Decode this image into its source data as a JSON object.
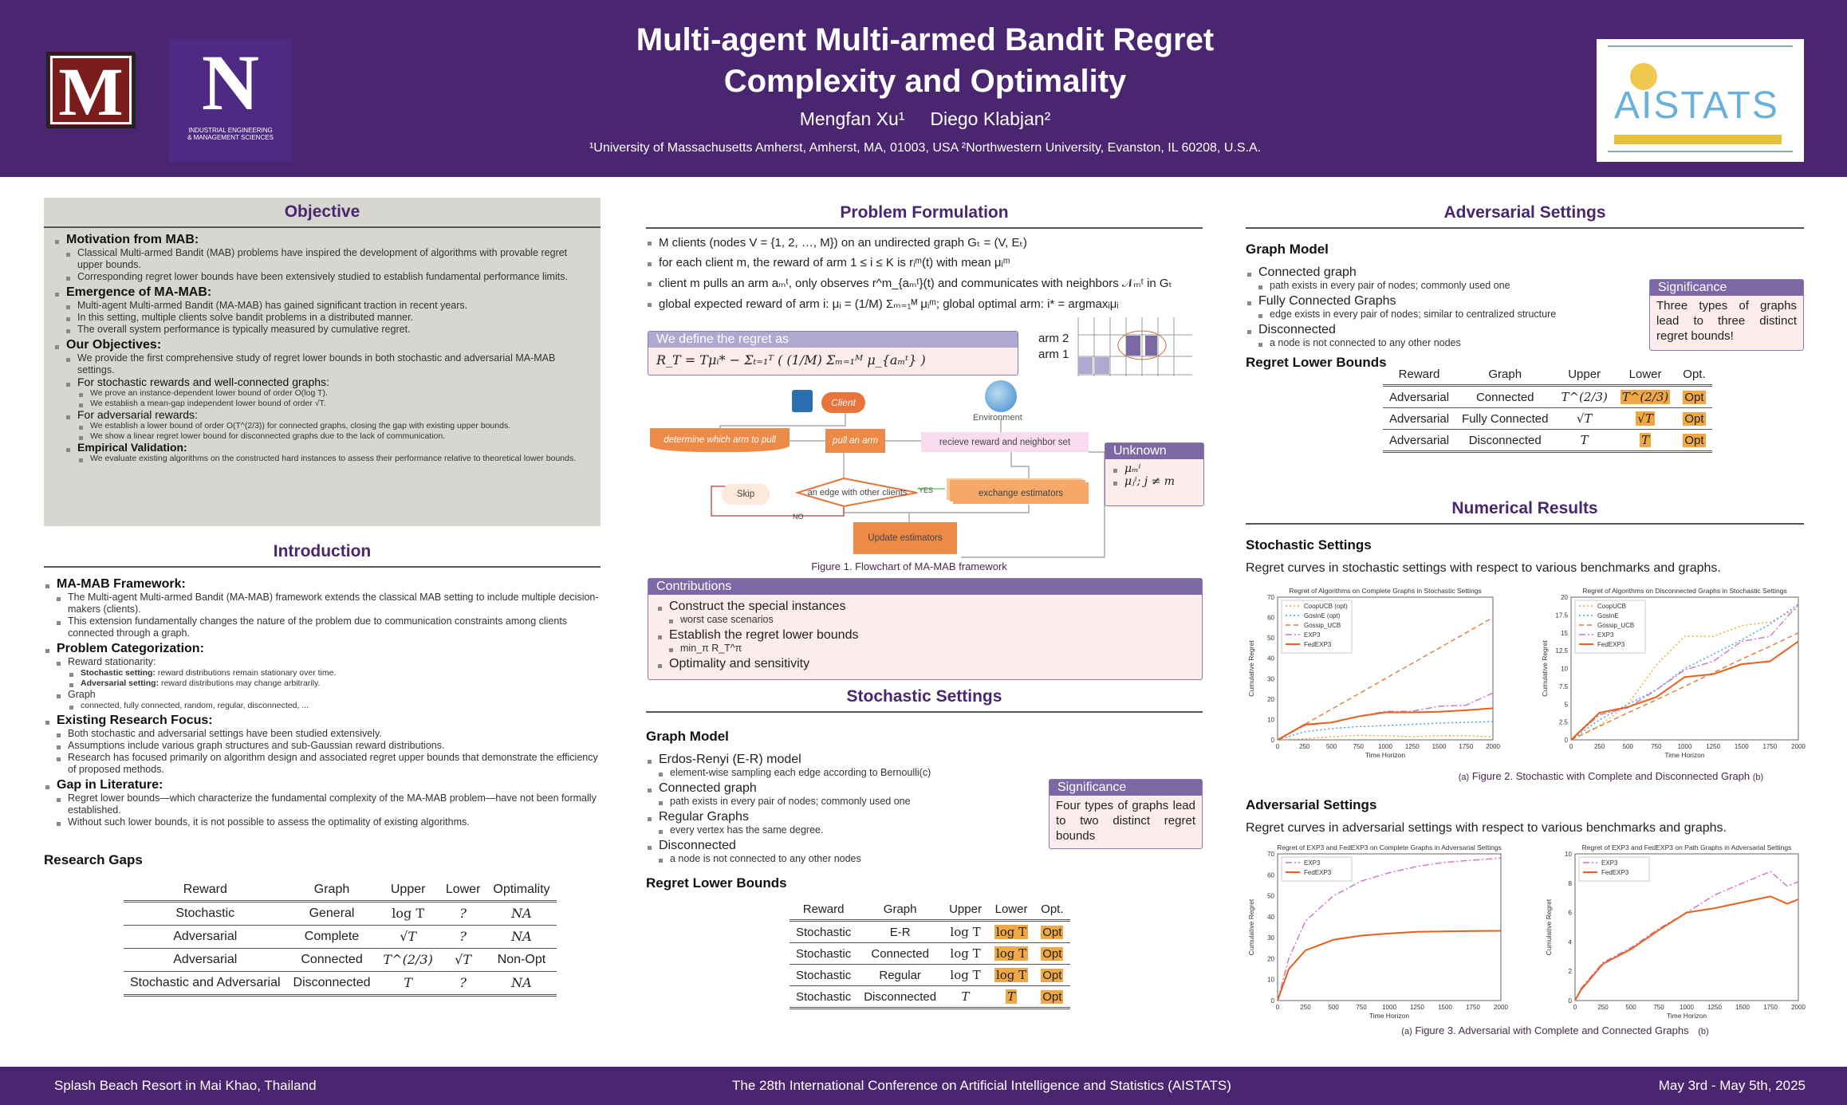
{
  "header": {
    "title_line1": "Multi-agent Multi-armed Bandit Regret",
    "title_line2": "Complexity and Optimality",
    "authors": "Mengfan Xu¹     Diego Klabjan²",
    "affiliations": "¹University of Massachusetts Amherst, Amherst, MA, 01003, USA ²Northwestern University, Evanston, IL 60208, U.S.A.",
    "logo_left1": "M",
    "logo_left2": "N",
    "logo_left2_sub1": "INDUSTRIAL ENGINEERING",
    "logo_left2_sub2": "& MANAGEMENT SCIENCES",
    "logo_right": "AISTATS"
  },
  "objective": {
    "title": "Objective",
    "sections": [
      {
        "head": "Motivation from MAB:",
        "items": [
          "Classical Multi-armed Bandit (MAB) problems have inspired the development of algorithms with provable regret upper bounds.",
          "Corresponding regret lower bounds have been extensively studied to establish fundamental performance limits."
        ]
      },
      {
        "head": "Emergence of MA-MAB:",
        "items": [
          "Multi-agent Multi-armed Bandit (MA-MAB) has gained significant traction in recent years.",
          "In this setting, multiple clients solve bandit problems in a distributed manner.",
          "The overall system performance is typically measured by cumulative regret."
        ]
      },
      {
        "head": "Our Objectives:",
        "items": [
          "We provide the first comprehensive study of regret lower bounds in both stochastic and adversarial MA-MAB settings.",
          "For stochastic rewards and well-connected graphs:",
          "We prove an instance-dependent lower bound of order O(log T).",
          "We establish a mean-gap independent lower bound of order √T.",
          "For adversarial rewards:",
          "We establish a lower bound of order O(T^(2/3)) for connected graphs, closing the gap with existing upper bounds.",
          "We show a linear regret lower bound for disconnected graphs due to the lack of communication.",
          "Empirical Validation:",
          "We evaluate existing algorithms on the constructed hard instances to assess their performance relative to theoretical lower bounds."
        ]
      }
    ]
  },
  "intro": {
    "title": "Introduction",
    "sections": [
      {
        "head": "MA-MAB Framework:",
        "items": [
          "The Multi-agent Multi-armed Bandit (MA-MAB) framework extends the classical MAB setting to include multiple decision-makers (clients).",
          "This extension fundamentally changes the nature of the problem due to communication constraints among clients connected through a graph."
        ]
      },
      {
        "head": "Problem Categorization:",
        "items": [
          "Reward stationarity:",
          "Stochastic setting:",
          "reward distributions remain stationary over time.",
          "Adversarial setting:",
          "reward distributions may change arbitrarily.",
          "Graph",
          "connected, fully connected, random, regular, disconnected, ..."
        ]
      },
      {
        "head": "Existing Research Focus:",
        "items": [
          "Both stochastic and adversarial settings have been studied extensively.",
          "Assumptions include various graph structures and sub-Gaussian reward distributions.",
          "Research has focused primarily on algorithm design and associated regret upper bounds that demonstrate the efficiency of proposed methods."
        ]
      },
      {
        "head": "Gap in Literature:",
        "items": [
          "Regret lower bounds—which characterize the fundamental complexity of the MA-MAB problem—have not been formally established.",
          "Without such lower bounds, it is not possible to assess the optimality of existing algorithms."
        ]
      }
    ],
    "gaps_title": "Research Gaps",
    "gaps_table": {
      "headers": [
        "Reward",
        "Graph",
        "Upper",
        "Lower",
        "Optimality"
      ],
      "rows": [
        [
          "Stochastic",
          "General",
          "log T",
          "?",
          "NA"
        ],
        [
          "Adversarial",
          "Complete",
          "√T",
          "?",
          "NA"
        ],
        [
          "Adversarial",
          "Connected",
          "T^(2/3)",
          "√T",
          "Non-Opt"
        ],
        [
          "Stochastic and Adversarial",
          "Disconnected",
          "T",
          "?",
          "NA"
        ]
      ]
    }
  },
  "problem": {
    "title": "Problem Formulation",
    "items": [
      "M clients (nodes V = {1, 2, …, M}) on an undirected graph Gₜ = (V, Eₜ)",
      "for each client m, the reward of arm 1 ≤ i ≤ K is rᵢᵐ(t) with mean μᵢᵐ",
      "client m pulls an arm aₘᵗ, only observes r^m_{aₘᵗ}(t) and communicates with neighbors 𝒩ₘᵗ in Gₜ",
      "global expected reward of arm i: μᵢ = (1/M) Σₘ₌₁ᴹ μᵢᵐ; global optimal arm: i* = argmaxᵢμᵢ"
    ],
    "regret_head": "We define the regret as",
    "regret_formula": "R_T = Tμᵢ* − Σₜ₌₁ᵀ ( (1/M) Σₘ₌₁ᴹ μ_{aₘᵗ} )",
    "arm2": "arm 2",
    "arm1": "arm 1",
    "flow": {
      "client": "Client",
      "environment": "Environment",
      "determine": "determine which arm to pull",
      "pull": "pull an arm",
      "receive": "recieve reward and neighbor set",
      "skip": "Skip",
      "edge": "an edge with other clients",
      "yes": "YES",
      "no": "NO",
      "exchange": "exchange estimators",
      "update": "Update estimators",
      "caption": "Figure 1. Flowchart of MA-MAB framework"
    },
    "unknown_head": "Unknown",
    "unknown_items": [
      "μₘⁱ",
      "μⱼⁱ; j ≠ m"
    ],
    "contrib_head": "Contributions",
    "contrib": [
      {
        "t": "Construct the special instances",
        "s": "worst case scenarios"
      },
      {
        "t": "Establish the regret lower bounds",
        "s": "min_π R_T^π"
      },
      {
        "t": "Optimality and sensitivity",
        "s": ""
      }
    ]
  },
  "stochastic": {
    "title": "Stochastic Settings",
    "graph_model": "Graph Model",
    "items": [
      {
        "t": "Erdos-Renyi (E-R) model",
        "s": "element-wise sampling each edge according to Bernoulli(c)"
      },
      {
        "t": "Connected graph",
        "s": "path exists in every pair of nodes; commonly used one"
      },
      {
        "t": "Regular Graphs",
        "s": "every vertex has the same degree."
      },
      {
        "t": "Disconnected",
        "s": "a node is not connected to any other nodes"
      }
    ],
    "sig_head": "Significance",
    "sig_text": "Four types of graphs lead to two distinct regret bounds",
    "bounds_title": "Regret Lower Bounds",
    "table": {
      "headers": [
        "Reward",
        "Graph",
        "Upper",
        "Lower",
        "Opt."
      ],
      "rows": [
        [
          "Stochastic",
          "E-R",
          "log T",
          "log T",
          "Opt"
        ],
        [
          "Stochastic",
          "Connected",
          "log T",
          "log T",
          "Opt"
        ],
        [
          "Stochastic",
          "Regular",
          "log T",
          "log T",
          "Opt"
        ],
        [
          "Stochastic",
          "Disconnected",
          "T",
          "T",
          "Opt"
        ]
      ]
    }
  },
  "adversarial": {
    "title": "Adversarial Settings",
    "graph_model": "Graph Model",
    "items": [
      {
        "t": "Connected graph",
        "s": "path exists in every pair of nodes; commonly used one"
      },
      {
        "t": "Fully Connected Graphs",
        "s": "edge exists in every pair of nodes; similar to centralized structure"
      },
      {
        "t": "Disconnected",
        "s": "a node is not connected to any other nodes"
      }
    ],
    "sig_head": "Significance",
    "sig_text": "Three types of graphs lead to three distinct regret bounds!",
    "bounds_title": "Regret Lower Bounds",
    "table": {
      "headers": [
        "Reward",
        "Graph",
        "Upper",
        "Lower",
        "Opt."
      ],
      "rows": [
        [
          "Adversarial",
          "Connected",
          "T^(2/3)",
          "T^(2/3)",
          "Opt"
        ],
        [
          "Adversarial",
          "Fully Connected",
          "√T",
          "√T",
          "Opt"
        ],
        [
          "Adversarial",
          "Disconnected",
          "T",
          "T",
          "Opt"
        ]
      ]
    }
  },
  "numerical": {
    "title": "Numerical Results",
    "stoch_head": "Stochastic Settings",
    "stoch_text": "Regret curves in stochastic settings with respect to various benchmarks and graphs.",
    "fig2_a": "(a)",
    "fig2_caption": "Figure 2. Stochastic with Complete and Disconnected Graph",
    "fig2_b": "(b)",
    "adv_head": "Adversarial Settings",
    "adv_text": "Regret curves in adversarial settings with respect to various benchmarks and graphs.",
    "fig3_a": "(a)",
    "fig3_caption": "Figure 3. Adversarial with Complete and Connected Graphs",
    "fig3_b": "(b)"
  },
  "chart_data": [
    {
      "type": "line",
      "title": "Regret of Algorithms on Complete Graphs in Stochastic Settings",
      "xlabel": "Time Horizon",
      "ylabel": "Cumulative Regret",
      "xlim": [
        0,
        2000
      ],
      "ylim": [
        0,
        70
      ],
      "xticks": [
        0,
        250,
        500,
        750,
        1000,
        1250,
        1500,
        1750,
        2000
      ],
      "yticks": [
        0,
        10,
        20,
        30,
        40,
        50,
        60,
        70
      ],
      "legend": "top-left",
      "x": [
        0,
        250,
        500,
        750,
        1000,
        1250,
        1500,
        1750,
        2000
      ],
      "series": [
        {
          "name": "CoopUCB (opt)",
          "color": "#f5a623",
          "dash": "2,3",
          "values": [
            0,
            0.5,
            1.5,
            2.2,
            2,
            1.6,
            2,
            2,
            1.5
          ]
        },
        {
          "name": "GosInE (opt)",
          "color": "#3aa0e0",
          "dash": "2,3",
          "values": [
            0,
            4,
            5.5,
            6.5,
            7,
            7.6,
            8.2,
            8.6,
            9
          ]
        },
        {
          "name": "Gossip_UCB",
          "color": "#e07b39",
          "dash": "6,4",
          "values": [
            0,
            7.5,
            15,
            22.5,
            30,
            37.5,
            45,
            52.5,
            60
          ]
        },
        {
          "name": "EXP3",
          "color": "#d070d0",
          "dash": "8,3,2,3",
          "values": [
            0,
            7,
            8.5,
            11.5,
            14,
            14,
            16.5,
            17,
            23
          ]
        },
        {
          "name": "FedEXP3",
          "color": "#e8601c",
          "dash": "",
          "values": [
            0,
            7.5,
            8.5,
            11.5,
            13.5,
            13.5,
            13.8,
            14.5,
            15.5
          ]
        }
      ]
    },
    {
      "type": "line",
      "title": "Regret of Algorithms on Disconnected Graphs in Stochastic Settings",
      "xlabel": "Time Horizon",
      "ylabel": "Cumulative Regret",
      "xlim": [
        0,
        2000
      ],
      "ylim": [
        0,
        20
      ],
      "xticks": [
        0,
        250,
        500,
        750,
        1000,
        1250,
        1500,
        1750,
        2000
      ],
      "yticks": [
        0,
        2.5,
        5,
        7.5,
        10,
        12.5,
        15,
        17.5,
        20
      ],
      "legend": "top-left",
      "x": [
        0,
        250,
        500,
        750,
        1000,
        1250,
        1500,
        1750,
        2000
      ],
      "series": [
        {
          "name": "CoopUCB",
          "color": "#f5a623",
          "dash": "2,3",
          "values": [
            0,
            2,
            5,
            10.5,
            14.5,
            14.5,
            16,
            16.5,
            18.5
          ]
        },
        {
          "name": "GosInE",
          "color": "#3aa0e0",
          "dash": "2,3",
          "values": [
            0,
            2.8,
            5,
            7,
            10,
            12,
            14,
            16.2,
            19
          ]
        },
        {
          "name": "Gossip_UCB",
          "color": "#e07b39",
          "dash": "6,4",
          "values": [
            0,
            1.9,
            3.8,
            5.6,
            7.5,
            9.4,
            11.3,
            13.1,
            15
          ]
        },
        {
          "name": "EXP3",
          "color": "#d070d0",
          "dash": "8,3,2,3",
          "values": [
            0,
            3.5,
            4.5,
            7,
            9.8,
            11,
            13.8,
            14.5,
            19
          ]
        },
        {
          "name": "FedEXP3",
          "color": "#e8601c",
          "dash": "",
          "values": [
            0,
            3.8,
            4.6,
            6,
            8.8,
            9.2,
            10.6,
            11,
            13.8
          ]
        }
      ]
    },
    {
      "type": "line",
      "title": "Regret of EXP3 and FedEXP3 on Complete Graphs in Adversarial Settings",
      "xlabel": "Time Horizon",
      "ylabel": "Cumulative Regret",
      "xlim": [
        0,
        2000
      ],
      "ylim": [
        0,
        70
      ],
      "xticks": [
        0,
        250,
        500,
        750,
        1000,
        1250,
        1500,
        1750,
        2000
      ],
      "yticks": [
        0,
        10,
        20,
        30,
        40,
        50,
        60,
        70
      ],
      "legend": "top-left",
      "x": [
        0,
        100,
        250,
        500,
        750,
        1000,
        1250,
        1500,
        1750,
        2000
      ],
      "series": [
        {
          "name": "EXP3",
          "color": "#d070d0",
          "dash": "8,3,2,3",
          "values": [
            0,
            20,
            38,
            50,
            57,
            61,
            64,
            66,
            67,
            68
          ]
        },
        {
          "name": "FedEXP3",
          "color": "#e8601c",
          "dash": "",
          "values": [
            0,
            15,
            24,
            29,
            31,
            32,
            32.8,
            33,
            33.2,
            33.3
          ]
        }
      ]
    },
    {
      "type": "line",
      "title": "Regret of EXP3 and FedEXP3 on Path Graphs in Adversarial Settings",
      "xlabel": "Time Horizon",
      "ylabel": "Cumulative Regret",
      "xlim": [
        0,
        2000
      ],
      "ylim": [
        0,
        10
      ],
      "xticks": [
        0,
        250,
        500,
        750,
        1000,
        1250,
        1500,
        1750,
        2000
      ],
      "yticks": [
        0,
        2,
        4,
        6,
        8,
        10
      ],
      "legend": "top-left",
      "x": [
        0,
        50,
        250,
        500,
        750,
        1000,
        1250,
        1500,
        1750,
        1900,
        2000
      ],
      "series": [
        {
          "name": "EXP3",
          "color": "#d070d0",
          "dash": "8,3,2,3",
          "values": [
            0,
            0.8,
            2.6,
            3.6,
            4.9,
            6,
            7.2,
            8,
            8.8,
            7.8,
            8.1
          ]
        },
        {
          "name": "FedEXP3",
          "color": "#e8601c",
          "dash": "",
          "values": [
            0,
            0.7,
            2.5,
            3.5,
            4.8,
            6,
            6.3,
            6.7,
            7.1,
            6.6,
            6.9
          ]
        }
      ]
    }
  ],
  "footer": {
    "venue": "Splash Beach Resort in Mai Khao, Thailand",
    "conference": "The 28th International Conference on Artificial Intelligence and Statistics (AISTATS)",
    "dates": "May 3rd - May 5th, 2025"
  }
}
